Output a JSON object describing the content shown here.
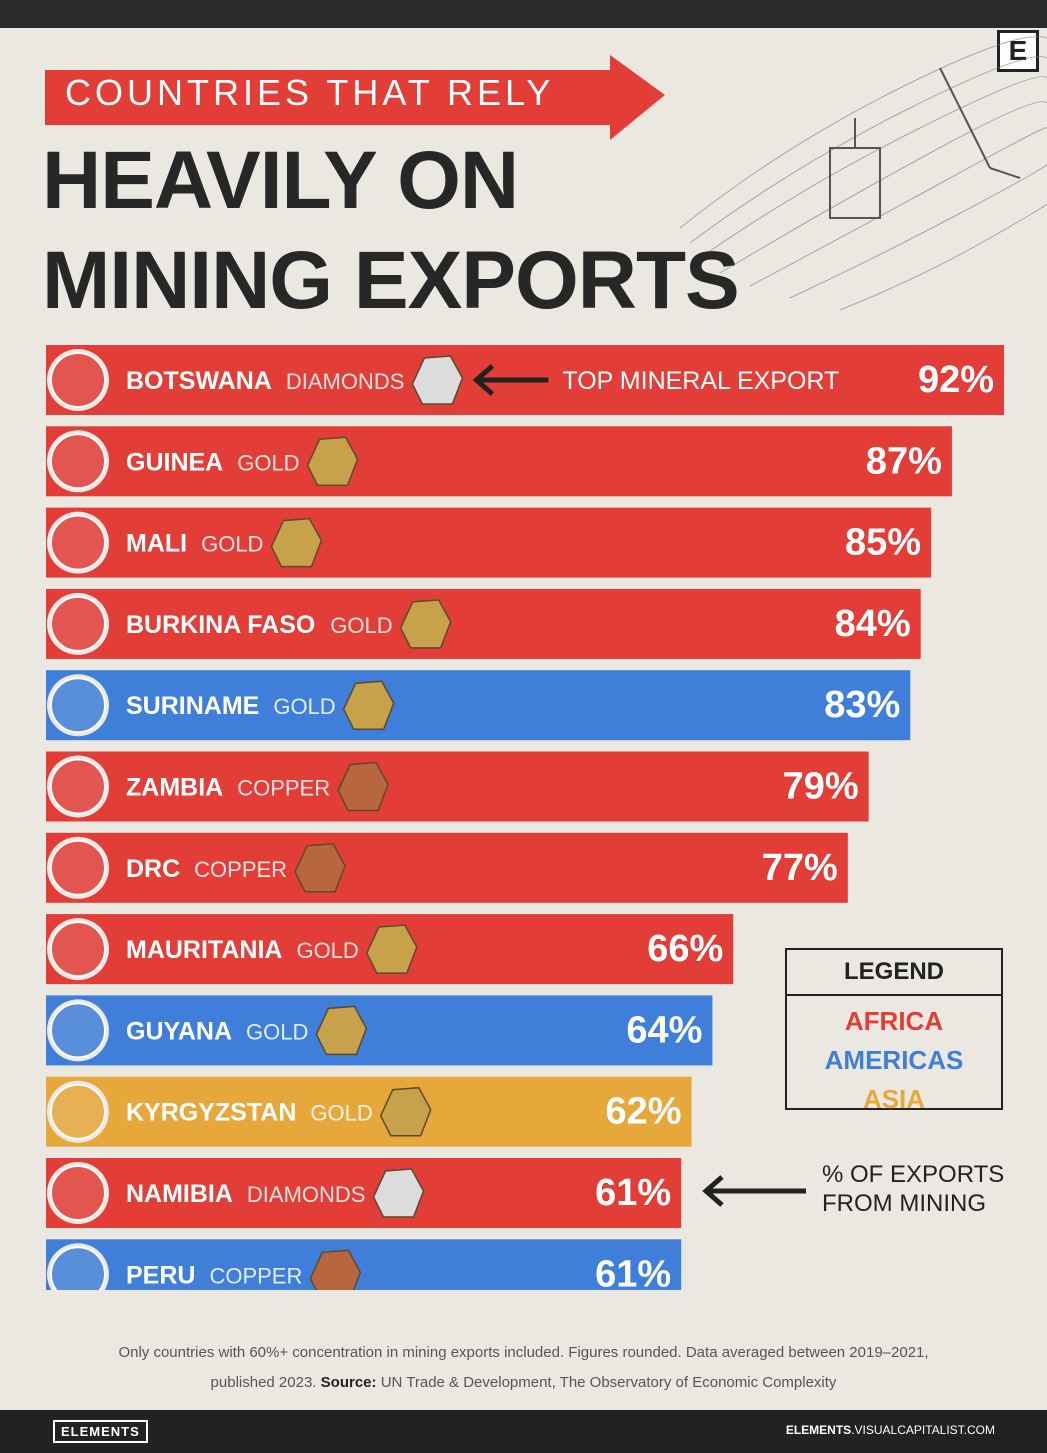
{
  "header": {
    "kicker": "COUNTRIES THAT RELY",
    "title_line1": "HEAVILY ON",
    "title_line2": "MINING EXPORTS",
    "logo_letter": "E"
  },
  "annotation_top": "TOP MINERAL EXPORT",
  "annotation_side": {
    "line1": "% OF EXPORTS",
    "line2": "FROM MINING"
  },
  "legend": {
    "title": "LEGEND",
    "items": [
      {
        "label": "AFRICA",
        "color": "#e23d37"
      },
      {
        "label": "AMERICAS",
        "color": "#3f7fd9"
      },
      {
        "label": "ASIA",
        "color": "#e7a83b"
      }
    ]
  },
  "chart_data": {
    "type": "bar",
    "orientation": "horizontal",
    "categories": [
      "BOTSWANA",
      "GUINEA",
      "MALI",
      "BURKINA FASO",
      "SURINAME",
      "ZAMBIA",
      "DRC",
      "MAURITANIA",
      "GUYANA",
      "KYRGYZSTAN",
      "NAMIBIA",
      "PERU"
    ],
    "values": [
      92,
      87,
      85,
      84,
      83,
      79,
      77,
      66,
      64,
      62,
      61,
      61
    ],
    "value_labels": [
      "92%",
      "87%",
      "85%",
      "84%",
      "83%",
      "79%",
      "77%",
      "66%",
      "64%",
      "62%",
      "61%",
      "61%"
    ],
    "minerals": [
      "DIAMONDS",
      "GOLD",
      "GOLD",
      "GOLD",
      "GOLD",
      "COPPER",
      "COPPER",
      "GOLD",
      "GOLD",
      "GOLD",
      "DIAMONDS",
      "COPPER"
    ],
    "regions": [
      "AFRICA",
      "AFRICA",
      "AFRICA",
      "AFRICA",
      "AMERICAS",
      "AFRICA",
      "AFRICA",
      "AFRICA",
      "AMERICAS",
      "ASIA",
      "AFRICA",
      "AMERICAS"
    ],
    "region_colors": {
      "AFRICA": "#e23d37",
      "AMERICAS": "#3f7fd9",
      "ASIA": "#e7a83b"
    },
    "mineral_colors": {
      "DIAMONDS": "#dcdcdc",
      "GOLD": "#c8a24a",
      "COPPER": "#b8663e"
    },
    "xlim": [
      0,
      92
    ]
  },
  "footnote": {
    "line1": "Only countries with 60%+ concentration in mining exports included. Figures rounded. Data averaged between 2019–2021,",
    "line2_pre": "published 2023.",
    "source_label": "Source:",
    "source_text": "UN Trade & Development, The Observatory of Economic Complexity"
  },
  "brand": {
    "left": "ELEMENTS",
    "right_bold": "ELEMENTS",
    "right_rest": ".VISUALCAPITALIST.COM"
  }
}
